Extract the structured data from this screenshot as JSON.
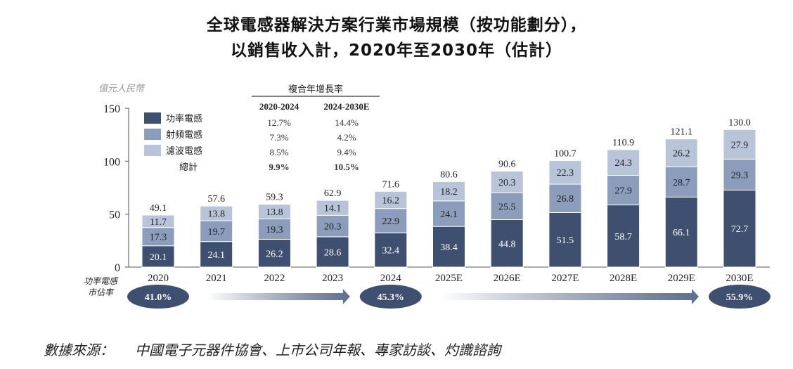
{
  "chart_data": {
    "type": "bar",
    "stacked": true,
    "title_line1": "全球電感器解決方案行業市場規模（按功能劃分），",
    "title_line2": "以銷售收入計，2020年至2030年（估計）",
    "ylabel": "億元人民幣",
    "ylim": [
      0,
      150
    ],
    "yticks": [
      0,
      50,
      100,
      150
    ],
    "grid": false,
    "legend_position": "top-left",
    "categories": [
      "2020",
      "2021",
      "2022",
      "2023",
      "2024",
      "2025E",
      "2026E",
      "2027E",
      "2028E",
      "2029E",
      "2030E"
    ],
    "series": [
      {
        "name": "功率電感",
        "color": "#3e4f6f",
        "values": [
          20.1,
          24.1,
          26.2,
          28.6,
          32.4,
          38.4,
          44.8,
          51.5,
          58.7,
          66.1,
          72.7
        ]
      },
      {
        "name": "射頻電感",
        "color": "#8b9dbb",
        "values": [
          17.3,
          19.7,
          19.3,
          20.3,
          22.9,
          24.1,
          25.5,
          26.8,
          27.9,
          28.7,
          29.3
        ]
      },
      {
        "name": "濾波電感",
        "color": "#b8c4d8",
        "values": [
          11.7,
          13.8,
          13.8,
          14.1,
          16.2,
          18.2,
          20.3,
          22.3,
          24.3,
          26.2,
          27.9
        ]
      }
    ],
    "totals": [
      49.1,
      57.6,
      59.3,
      62.9,
      71.6,
      80.6,
      90.6,
      100.7,
      110.9,
      121.1,
      130.0
    ],
    "cagr_table": {
      "header": "複合年增長率",
      "columns": [
        "2020-2024",
        "2024-2030E"
      ],
      "rows": [
        {
          "label": "功率電感",
          "values": [
            "12.7%",
            "14.4%"
          ]
        },
        {
          "label": "射頻電感",
          "values": [
            "7.3%",
            "4.2%"
          ]
        },
        {
          "label": "濾波電感",
          "values": [
            "8.5%",
            "9.4%"
          ]
        },
        {
          "label": "總計",
          "values": [
            "9.9%",
            "10.5%"
          ]
        }
      ]
    },
    "market_share": {
      "label": [
        "功率電感",
        "市佔率"
      ],
      "points": [
        {
          "category": "2020",
          "value": "41.0%"
        },
        {
          "category": "2024",
          "value": "45.3%"
        },
        {
          "category": "2030E",
          "value": "55.9%"
        }
      ]
    }
  },
  "source": {
    "label": "數據來源：",
    "text": "中國電子元器件協會、上市公司年報、專家訪談、灼識諮詢"
  }
}
